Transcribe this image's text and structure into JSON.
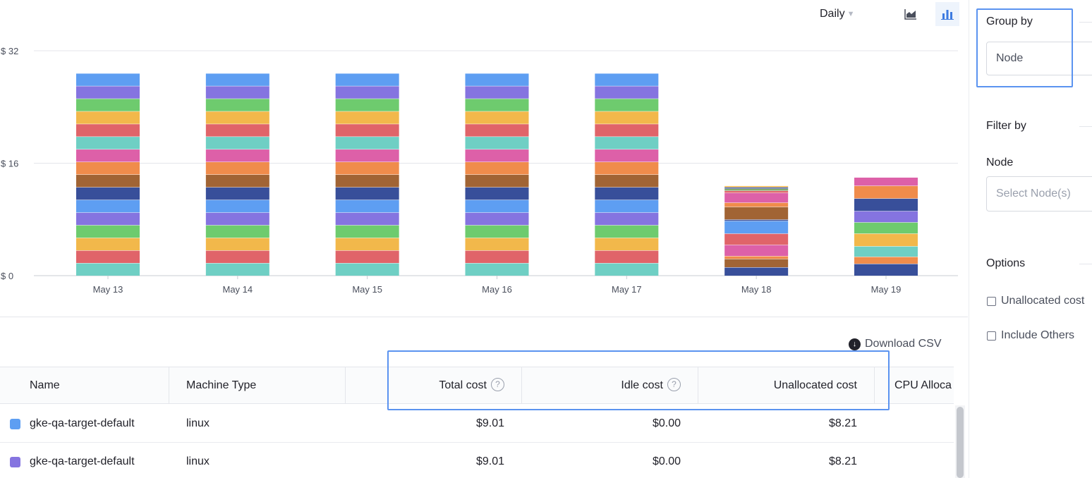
{
  "toolbar": {
    "period_label": "Daily",
    "area_view_icon": "area-chart-icon",
    "bar_view_icon": "bar-chart-icon",
    "active_view": "bar"
  },
  "chart_data": {
    "type": "bar",
    "stacked": true,
    "categories": [
      "May 13",
      "May 14",
      "May 15",
      "May 16",
      "May 17",
      "May 18",
      "May 19"
    ],
    "y_ticks": [
      "$ 32",
      "$ 16",
      "$ 0"
    ],
    "y_tick_values": [
      32,
      16,
      0
    ],
    "ylim": [
      0,
      32
    ],
    "grid": true,
    "title": "",
    "xlabel": "",
    "ylabel": "",
    "series": [
      {
        "color": "#6fcfc4",
        "values": [
          1.8,
          1.8,
          1.8,
          1.8,
          1.8,
          0.0,
          0.0
        ]
      },
      {
        "color": "#e06469",
        "values": [
          1.8,
          1.8,
          1.8,
          1.8,
          1.8,
          0.0,
          0.0
        ]
      },
      {
        "color": "#f2b84b",
        "values": [
          1.8,
          1.8,
          1.8,
          1.8,
          1.8,
          0.0,
          0.0
        ]
      },
      {
        "color": "#6ecb6e",
        "values": [
          1.8,
          1.8,
          1.8,
          1.8,
          1.8,
          0.0,
          0.0
        ]
      },
      {
        "color": "#8574e0",
        "values": [
          1.8,
          1.8,
          1.8,
          1.8,
          1.8,
          0.0,
          0.0
        ]
      },
      {
        "color": "#5e9ef2",
        "values": [
          1.8,
          1.8,
          1.8,
          1.8,
          1.8,
          0.0,
          0.0
        ]
      },
      {
        "color": "#384f9a",
        "values": [
          1.8,
          1.8,
          1.8,
          1.8,
          1.8,
          1.2,
          1.7
        ]
      },
      {
        "color": "#a16434",
        "values": [
          1.8,
          1.8,
          1.8,
          1.8,
          1.8,
          1.2,
          0.0
        ]
      },
      {
        "color": "#f08c4b",
        "values": [
          1.8,
          1.8,
          1.8,
          1.8,
          1.8,
          0.4,
          1.0
        ]
      },
      {
        "color": "#dd60a8",
        "values": [
          1.8,
          1.8,
          1.8,
          1.8,
          1.8,
          1.6,
          0.0
        ]
      },
      {
        "color": "#e06469",
        "values": [
          0.0,
          0.0,
          0.0,
          0.0,
          0.0,
          1.6,
          0.0
        ]
      },
      {
        "color": "#6fcfc4",
        "values": [
          0.0,
          0.0,
          0.0,
          0.0,
          0.0,
          0.0,
          1.5
        ]
      },
      {
        "color": "#f2b84b",
        "values": [
          0.0,
          0.0,
          0.0,
          0.0,
          0.0,
          0.0,
          1.8
        ]
      },
      {
        "color": "#6ecb6e",
        "values": [
          0.0,
          0.0,
          0.0,
          0.0,
          0.0,
          0.0,
          1.6
        ]
      },
      {
        "color": "#8574e0",
        "values": [
          0.0,
          0.0,
          0.0,
          0.0,
          0.0,
          0.0,
          1.6
        ]
      },
      {
        "color": "#5e9ef2",
        "values": [
          0.0,
          0.0,
          0.0,
          0.0,
          0.0,
          1.8,
          0.0
        ]
      },
      {
        "color": "#384f9a",
        "values": [
          0.0,
          0.0,
          0.0,
          0.0,
          0.0,
          0.2,
          1.8
        ]
      },
      {
        "color": "#a16434",
        "values": [
          0.0,
          0.0,
          0.0,
          0.0,
          0.0,
          1.8,
          0.0
        ]
      },
      {
        "color": "#f08c4b",
        "values": [
          0.0,
          0.0,
          0.0,
          0.0,
          0.0,
          0.6,
          1.8
        ]
      },
      {
        "color": "#dd60a8",
        "values": [
          0.0,
          0.0,
          0.0,
          0.0,
          0.0,
          1.4,
          1.2
        ]
      },
      {
        "color": "#e06469",
        "values": [
          0.0,
          0.0,
          0.0,
          0.0,
          0.0,
          0.3,
          0.0
        ]
      },
      {
        "color": "#7fa86a",
        "values": [
          0.0,
          0.0,
          0.0,
          0.0,
          0.0,
          0.3,
          0.0
        ]
      },
      {
        "color": "#384f9a",
        "values": [
          0.0,
          0.0,
          0.0,
          0.0,
          0.0,
          0.2,
          0.0
        ]
      },
      {
        "color": "#f2b84b",
        "values": [
          0.0,
          0.0,
          0.0,
          0.0,
          0.0,
          0.2,
          0.0
        ]
      },
      {
        "color": "#6fcfc4",
        "values": [
          1.8,
          1.8,
          1.8,
          1.8,
          1.8,
          0.0,
          0.0
        ]
      },
      {
        "color": "#e06469",
        "values": [
          1.8,
          1.8,
          1.8,
          1.8,
          1.8,
          0.0,
          0.0
        ]
      },
      {
        "color": "#f2b84b",
        "values": [
          1.8,
          1.8,
          1.8,
          1.8,
          1.8,
          0.0,
          0.0
        ]
      },
      {
        "color": "#6ecb6e",
        "values": [
          1.8,
          1.8,
          1.8,
          1.8,
          1.8,
          0.0,
          0.0
        ]
      },
      {
        "color": "#8574e0",
        "values": [
          1.8,
          1.8,
          1.8,
          1.8,
          1.8,
          0.0,
          0.0
        ]
      },
      {
        "color": "#5e9ef2",
        "values": [
          1.8,
          1.8,
          1.8,
          1.8,
          1.8,
          0.0,
          0.0
        ]
      }
    ]
  },
  "download": {
    "label": "Download CSV",
    "icon": "download-icon"
  },
  "table": {
    "headers": {
      "name": "Name",
      "machine_type": "Machine Type",
      "empty": "",
      "total_cost": "Total cost",
      "idle_cost": "Idle cost",
      "unallocated_cost": "Unallocated cost",
      "cpu_allocation": "CPU Alloca"
    },
    "help_glyph": "?",
    "rows": [
      {
        "color": "#5e9ef2",
        "name": "gke-qa-target-default",
        "machine_type": "linux",
        "total_cost": "$9.01",
        "idle_cost": "$0.00",
        "unallocated_cost": "$8.21"
      },
      {
        "color": "#8574e0",
        "name": "gke-qa-target-default",
        "machine_type": "linux",
        "total_cost": "$9.01",
        "idle_cost": "$0.00",
        "unallocated_cost": "$8.21"
      }
    ]
  },
  "side": {
    "group_by": {
      "title": "Group by",
      "value": "Node"
    },
    "filter_by": {
      "title": "Filter by",
      "node_label": "Node",
      "node_placeholder": "Select Node(s)"
    },
    "options": {
      "title": "Options",
      "items": [
        {
          "label": "Unallocated cost",
          "checked": false
        },
        {
          "label": "Include Others",
          "checked": false
        }
      ]
    }
  },
  "colors": {
    "accent": "#5b93f0",
    "grid": "#e4e6eb",
    "text": "#22222a"
  }
}
